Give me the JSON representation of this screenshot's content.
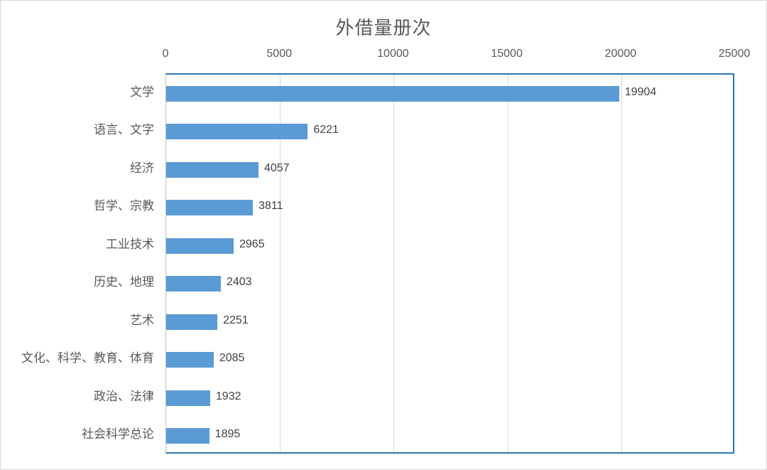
{
  "chart_data": {
    "type": "bar",
    "orientation": "horizontal",
    "title": "外借量册次",
    "categories": [
      "文学",
      "语言、文字",
      "经济",
      "哲学、宗教",
      "工业技术",
      "历史、地理",
      "艺术",
      "文化、科学、教育、体育",
      "政治、法律",
      "社会科学总论"
    ],
    "values": [
      19904,
      6221,
      4057,
      3811,
      2965,
      2403,
      2251,
      2085,
      1932,
      1895
    ],
    "xlim": [
      0,
      25000
    ],
    "xticks": [
      0,
      5000,
      10000,
      15000,
      20000,
      25000
    ],
    "xtick_labels": [
      "0",
      "5000",
      "10000",
      "15000",
      "20000",
      "25000"
    ],
    "data_labels": [
      "19904",
      "6221",
      "4057",
      "3811",
      "2965",
      "2403",
      "2251",
      "2085",
      "1932",
      "1895"
    ],
    "xlabel": "",
    "ylabel": "",
    "legend": "none",
    "grid": true,
    "axis_position": "top",
    "colors": {
      "bar": "#5B9BD5",
      "plot_border": "#2E75B6",
      "gridline": "#D9D9D9",
      "axis_line": "#C0C0C0",
      "title_text": "#595959",
      "tick_text": "#595959",
      "category_text": "#595959",
      "value_label_text": "#404040",
      "background": "#FFFFFF",
      "page_border": "#D9D9D9"
    }
  }
}
